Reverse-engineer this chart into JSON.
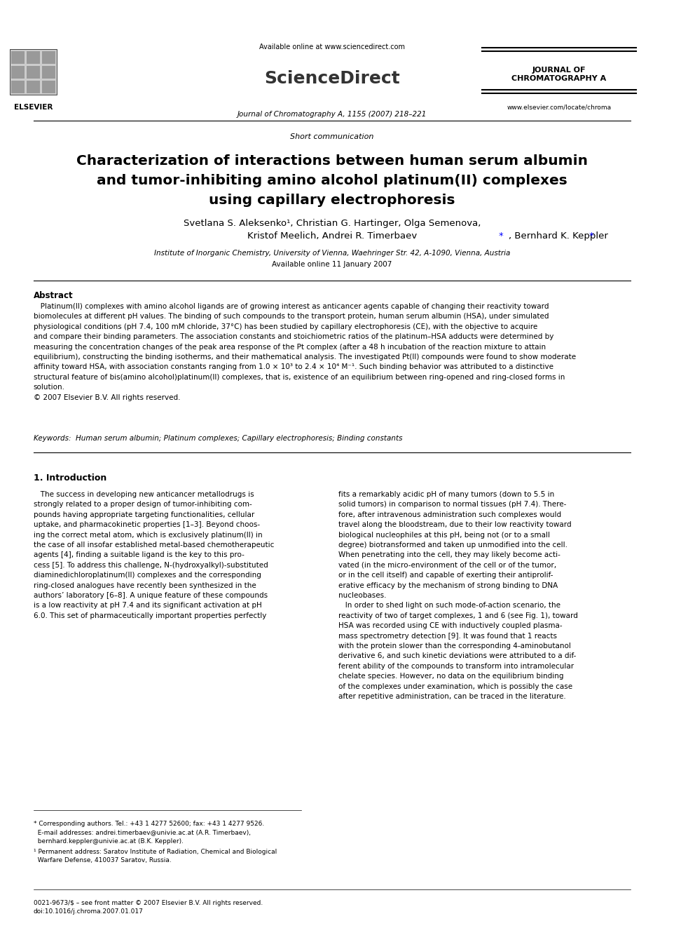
{
  "background_color": "#ffffff",
  "page_title": "Characterization of interactions between human serum albumin and tumor-inhibiting amino alcohol platinum(II) complexes using capillary electrophoresis",
  "journal_type": "Short communication",
  "journal_name": "Journal of Chromatography A, 1155 (2007) 218–221",
  "journal_label": "JOURNAL OF\nCHROMATOGRAPHY A",
  "url": "www.elsevier.com/locate/chroma",
  "available_online": "Available online at www.sciencedirect.com",
  "authors": "Svetlana S. Aleksenko¹, Christian G. Hartinger, Olga Semenova,\nKristof Meelich, Andrei R. Timerbaev*, Bernhard K. Keppler*",
  "affiliation": "Institute of Inorganic Chemistry, University of Vienna, Waehringer Str. 42, A-1090, Vienna, Austria",
  "available_date": "Available online 11 January 2007",
  "abstract_title": "Abstract",
  "abstract_text": "Platinum(II) complexes with amino alcohol ligands are of growing interest as anticancer agents capable of changing their reactivity toward biomolecules at different pH values. The binding of such compounds to the transport protein, human serum albumin (HSA), under simulated physiological conditions (pH 7.4, 100 mM chloride, 37°C) has been studied by capillary electrophoresis (CE), with the objective to acquire and compare their binding parameters. The association constants and stoichiometric ratios of the platinum–HSA adducts were determined by measuring the concentration changes of the peak area response of the Pt complex (after a 48 h incubation of the reaction mixture to attain equilibrium), constructing the binding isotherms, and their mathematical analysis. The investigated Pt(II) compounds were found to show moderate affinity toward HSA, with association constants ranging from 1.0 × 10³ to 2.4 × 10⁴ M⁻¹. Such binding behavior was attributed to a distinctive structural feature of bis(amino alcohol)platinum(II) complexes, that is, existence of an equilibrium between ring-opened and ring-closed forms in solution.\n© 2007 Elsevier B.V. All rights reserved.",
  "keywords": "Keywords:  Human serum albumin; Platinum complexes; Capillary electrophoresis; Binding constants",
  "section1_title": "1. Introduction",
  "section1_col1": "The success in developing new anticancer metallodrugs is strongly related to a proper design of tumor-inhibiting compounds having appropriate targeting functionalities, cellular uptake, and pharmacokinetic properties [1–3]. Beyond choosing the correct metal atom, which is exclusively platinum(II) in the case of all insofar established metal-based chemotherapeutic agents [4], finding a suitable ligand is the key to this process [5]. To address this challenge, N-(hydroxyalkyl)-substituted diaminedichloroplatinum(II) complexes and the corresponding ring-closed analogues have recently been synthesized in the authors’ laboratory [6–8]. A unique feature of these compounds is a low reactivity at pH 7.4 and its significant activation at pH 6.0. This set of pharmaceutically important properties perfectly",
  "section1_col2": "fits a remarkably acidic pH of many tumors (down to 5.5 in solid tumors) in comparison to normal tissues (pH 7.4). Therefore, after intravenous administration such complexes would travel along the bloodstream, due to their low reactivity toward biological nucleophiles at this pH, being not (or to a small degree) biotransformed and taken up unmodified into the cell. When penetrating into the cell, they may likely become activated (in the micro-environment of the cell or of the tumor, or in the cell itself) and capable of exerting their antiproliferative efficacy by the mechanism of strong binding to DNA nucleobases.\n\nIn order to shed light on such mode-of-action scenario, the reactivity of two of target complexes, 1 and 6 (see Fig. 1), toward HSA was recorded using CE with inductively coupled plasma-mass spectrometry detection [9]. It was found that 1 reacts with the protein slower than the corresponding 4-aminobutanol derivative 6, and such kinetic deviations were attributed to a different ability of the compounds to transform into intramolecular chelate species. However, no data on the equilibrium binding of the complexes under examination, which is possibly the case after repetitive administration, can be traced in the literature.",
  "footnote1": "* Corresponding authors. Tel.: +43 1 4277 52600; fax: +43 1 4277 9526.\n  E-mail addresses: andrei.timerbaev@univie.ac.at (A.R. Timerbaev),\n  bernhard.keppler@univie.ac.at (B.K. Keppler).",
  "footnote2": "¹ Permanent address: Saratov Institute of Radiation, Chemical and Biological\n  Warfare Defense, 410037 Saratov, Russia.",
  "footer": "0021-9673/$ – see front matter © 2007 Elsevier B.V. All rights reserved.\ndoi:10.1016/j.chroma.2007.01.017"
}
